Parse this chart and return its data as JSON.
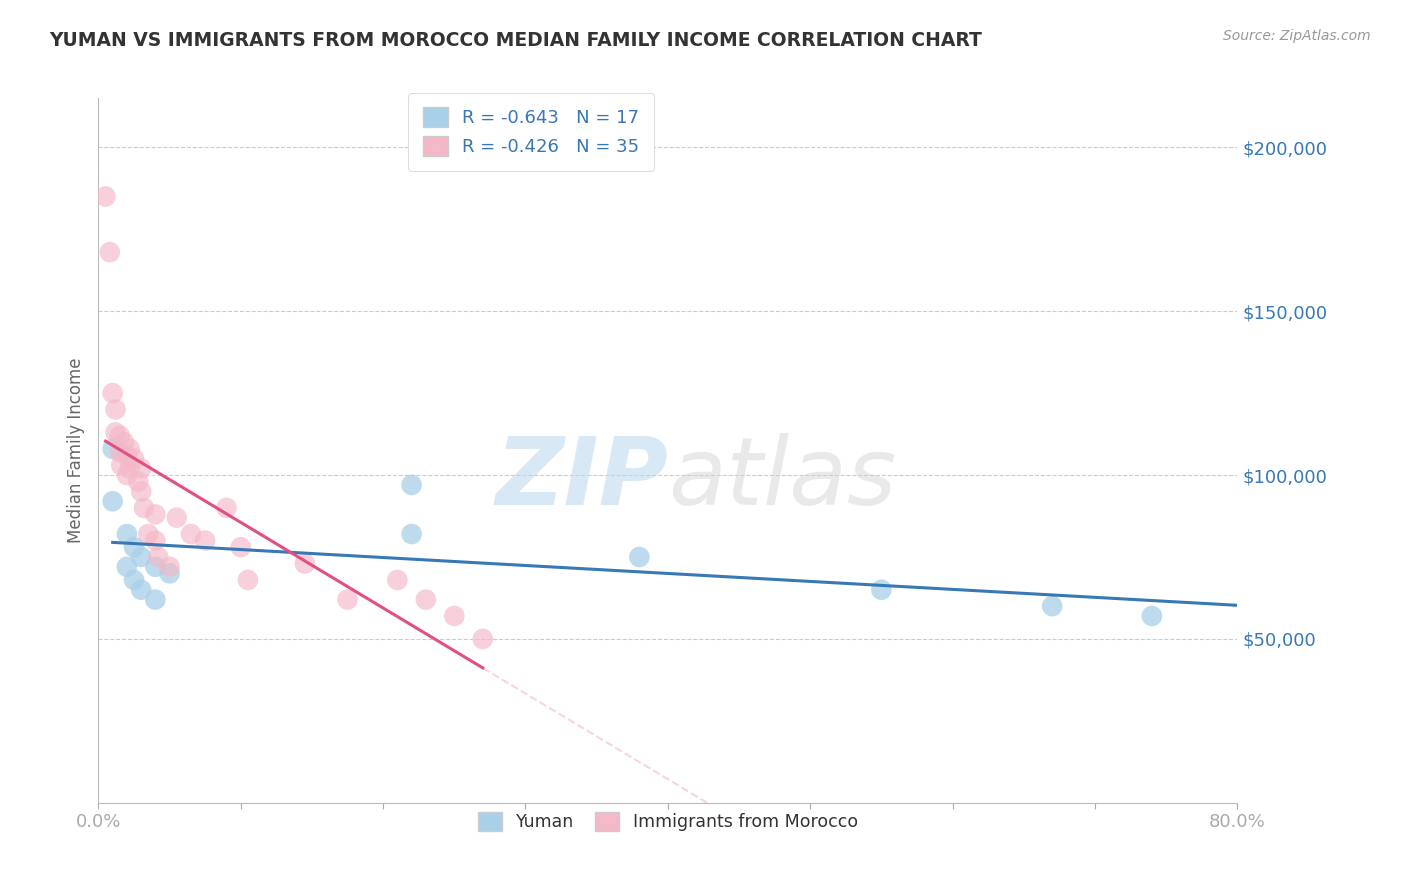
{
  "title": "YUMAN VS IMMIGRANTS FROM MOROCCO MEDIAN FAMILY INCOME CORRELATION CHART",
  "source": "Source: ZipAtlas.com",
  "ylabel": "Median Family Income",
  "xlim": [
    0.0,
    0.8
  ],
  "ylim": [
    0,
    215000
  ],
  "yticks": [
    50000,
    100000,
    150000,
    200000
  ],
  "ytick_labels": [
    "$50,000",
    "$100,000",
    "$150,000",
    "$200,000"
  ],
  "xtick_left": "0.0%",
  "xtick_right": "80.0%",
  "legend_label1": "Yuman",
  "legend_label2": "Immigrants from Morocco",
  "R1": -0.643,
  "N1": 17,
  "R2": -0.426,
  "N2": 35,
  "blue_color": "#a8d0e8",
  "blue_line_color": "#3878b4",
  "pink_color": "#f4b8c8",
  "pink_line_color": "#e05080",
  "watermark_text": "ZIPatlas",
  "blue_scatter_x": [
    0.01,
    0.01,
    0.02,
    0.02,
    0.025,
    0.025,
    0.03,
    0.03,
    0.04,
    0.04,
    0.05,
    0.22,
    0.22,
    0.38,
    0.55,
    0.67,
    0.74
  ],
  "blue_scatter_y": [
    108000,
    92000,
    82000,
    72000,
    78000,
    68000,
    75000,
    65000,
    72000,
    62000,
    70000,
    97000,
    82000,
    75000,
    65000,
    60000,
    57000
  ],
  "pink_scatter_x": [
    0.005,
    0.008,
    0.01,
    0.012,
    0.012,
    0.015,
    0.015,
    0.016,
    0.018,
    0.02,
    0.02,
    0.022,
    0.022,
    0.025,
    0.028,
    0.03,
    0.03,
    0.032,
    0.035,
    0.04,
    0.04,
    0.042,
    0.05,
    0.055,
    0.065,
    0.075,
    0.09,
    0.1,
    0.105,
    0.145,
    0.175,
    0.21,
    0.23,
    0.25,
    0.27
  ],
  "pink_scatter_y": [
    185000,
    168000,
    125000,
    120000,
    113000,
    112000,
    107000,
    103000,
    110000,
    106000,
    100000,
    108000,
    102000,
    105000,
    98000,
    102000,
    95000,
    90000,
    82000,
    88000,
    80000,
    75000,
    72000,
    87000,
    82000,
    80000,
    90000,
    78000,
    68000,
    73000,
    62000,
    68000,
    62000,
    57000,
    50000
  ]
}
